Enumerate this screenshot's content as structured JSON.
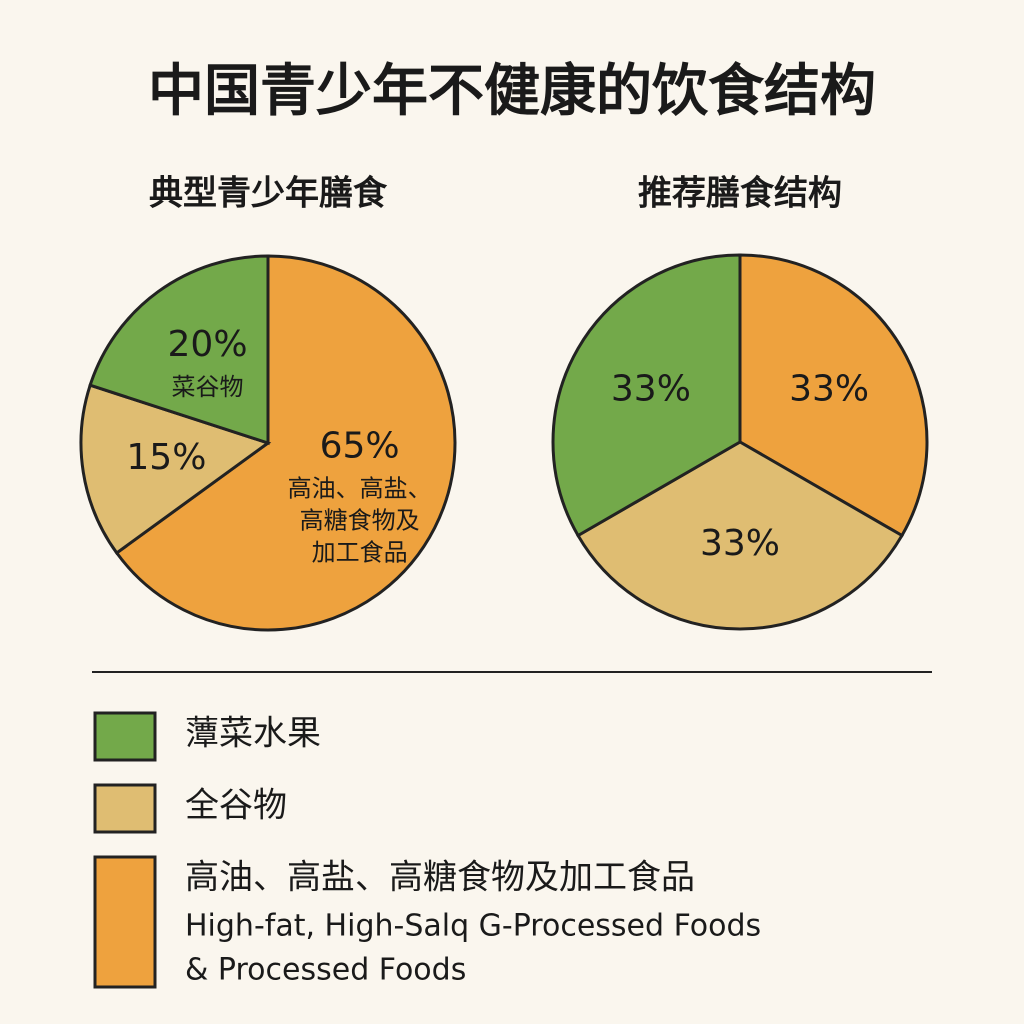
{
  "title": "中国青少年不健康的饮食结构",
  "chart_data": [
    {
      "type": "pie",
      "title": "典型青少年膳食",
      "values": [
        65,
        15,
        20
      ],
      "value_labels": [
        "65%",
        "15%",
        "20%"
      ],
      "colors": [
        "#eea23e",
        "#dfbd72",
        "#73a94a"
      ],
      "slice_notes": [
        [
          "高油、高盐、",
          "高糖食物及",
          "加工食品"
        ],
        null,
        [
          "菜谷物"
        ]
      ]
    },
    {
      "type": "pie",
      "title": "推荐膳食结构",
      "values": [
        33,
        33,
        33
      ],
      "value_labels": [
        "33%",
        "33%",
        "33%"
      ],
      "colors": [
        "#eea23e",
        "#dfbd72",
        "#73a94a"
      ]
    }
  ],
  "legend": [
    {
      "label": "藫菜水果",
      "color": "#73a94a"
    },
    {
      "label": "全谷物",
      "color": "#dfbd72"
    },
    {
      "label": "高油、高盐、高糖食物及加工食品",
      "color": "#eea23e",
      "note_lines": [
        "High-fat, High-Salq G-Processed Foods",
        "& Processed Foods"
      ]
    }
  ]
}
